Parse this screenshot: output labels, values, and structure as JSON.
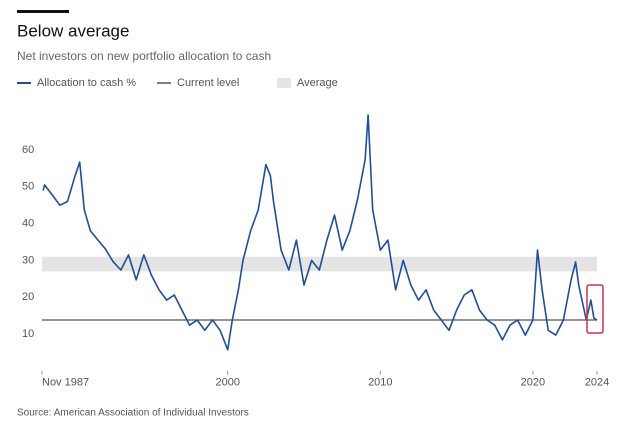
{
  "chart_data": {
    "type": "line",
    "title": "Below average",
    "subtitle": "Net investors on new portfolio allocation to cash",
    "source": "Source: American Association of Individual Investors",
    "series": [
      {
        "name": "Allocation to cash %",
        "color": "#1f4e9a",
        "x": [
          1987.9,
          1988,
          1988.5,
          1989,
          1989.5,
          1990,
          1990.3,
          1990.6,
          1991,
          1991.5,
          1992,
          1992.5,
          1993,
          1993.5,
          1994,
          1994.5,
          1995,
          1995.5,
          1996,
          1996.5,
          1997,
          1997.5,
          1998,
          1998.5,
          1999,
          1999.5,
          2000,
          2000.3,
          2000.7,
          2001,
          2001.5,
          2002,
          2002.5,
          2002.8,
          2003,
          2003.5,
          2004,
          2004.5,
          2005,
          2005.5,
          2006,
          2006.5,
          2007,
          2007.5,
          2008,
          2008.5,
          2009,
          2009.2,
          2009.5,
          2010,
          2010.5,
          2011,
          2011.5,
          2012,
          2012.5,
          2013,
          2013.5,
          2014,
          2014.5,
          2015,
          2015.5,
          2016,
          2016.5,
          2017,
          2017.5,
          2018,
          2018.5,
          2019,
          2019.5,
          2020,
          2020.3,
          2020.6,
          2021,
          2021.5,
          2022,
          2022.5,
          2022.8,
          2023,
          2023.5,
          2023.8,
          2024,
          2024.2
        ],
        "values": [
          49,
          50.5,
          47.8,
          45,
          46,
          53,
          56.7,
          43.7,
          38,
          35.5,
          33,
          29.6,
          27.4,
          31.5,
          24.7,
          31.5,
          26,
          22,
          19.2,
          20.6,
          16.5,
          12.4,
          13.8,
          11,
          13.8,
          11,
          5.7,
          13.8,
          22,
          30,
          38,
          43.7,
          56,
          53,
          46,
          32.8,
          27.4,
          35.5,
          23.3,
          30,
          27.4,
          35.5,
          42.3,
          32.8,
          38,
          46.4,
          57.3,
          69.5,
          43.7,
          32.8,
          35.5,
          22,
          30,
          23.3,
          19.2,
          22,
          16.5,
          13.8,
          11,
          16.5,
          20.6,
          22,
          16.5,
          13.8,
          12.4,
          8.4,
          12.4,
          13.8,
          9.7,
          13.8,
          32.8,
          22,
          11,
          9.7,
          13.8,
          24.7,
          29.6,
          23.3,
          13.8,
          19.2,
          14.3,
          13.8
        ]
      }
    ],
    "current_level": {
      "name": "Current level",
      "value": 13.8,
      "color": "#555555"
    },
    "average": {
      "name": "Average",
      "range": [
        27,
        31
      ],
      "color": "#e4e4e4"
    },
    "xlim": [
      1987.83,
      2024.2
    ],
    "xticks": [
      {
        "value": 1987.83,
        "label": "Nov 1987"
      },
      2000,
      2010,
      2020,
      {
        "value": 2024.2,
        "label": "2024"
      }
    ],
    "ylim": [
      0,
      72
    ],
    "yticks": [
      10,
      20,
      30,
      40,
      50,
      60
    ]
  }
}
